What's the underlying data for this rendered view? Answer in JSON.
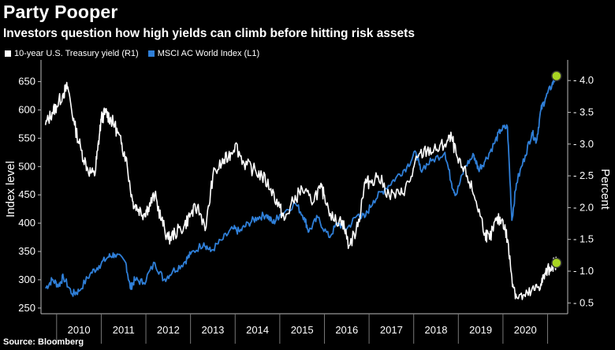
{
  "header": {
    "title": "Party Pooper",
    "subtitle": "Investors question how high yields can climb before hitting risk assets"
  },
  "footer": {
    "source": "Source: Bloomberg"
  },
  "colors": {
    "background": "#000000",
    "treasury": "#ffffff",
    "msci": "#2f7fd8",
    "marker": "#a8d422"
  },
  "chart_data": {
    "type": "line",
    "title": "Party Pooper",
    "subtitle": "Investors question how high yields can climb before hitting risk assets",
    "xlabel": "",
    "ylabel_left": "Index level",
    "ylabel_right": "Percent",
    "ylim_left": [
      240,
      680
    ],
    "ylim_right": [
      0.33,
      4.25
    ],
    "yticks_left": [
      250,
      300,
      350,
      400,
      450,
      500,
      550,
      600,
      650
    ],
    "yticks_right": [
      "0.5",
      "1.0",
      "1.5",
      "2.0",
      "2.5",
      "3.0",
      "3.5",
      "4.0"
    ],
    "x_categories": [
      "2010",
      "2011",
      "2012",
      "2013",
      "2014",
      "2015",
      "2016",
      "2017",
      "2018",
      "2019",
      "2020"
    ],
    "grid": false,
    "legend_position": "top-left",
    "series": [
      {
        "name": "10-year U.S. Treasury yield (R1)",
        "axis": "right",
        "points": [
          [
            2009.75,
            3.3
          ],
          [
            2009.9,
            3.5
          ],
          [
            2010.0,
            3.6
          ],
          [
            2010.15,
            3.8
          ],
          [
            2010.25,
            3.9
          ],
          [
            2010.4,
            3.3
          ],
          [
            2010.55,
            2.9
          ],
          [
            2010.7,
            2.6
          ],
          [
            2010.85,
            2.5
          ],
          [
            2010.92,
            2.9
          ],
          [
            2011.0,
            3.4
          ],
          [
            2011.1,
            3.5
          ],
          [
            2011.2,
            3.4
          ],
          [
            2011.3,
            3.3
          ],
          [
            2011.45,
            3.0
          ],
          [
            2011.55,
            2.8
          ],
          [
            2011.7,
            2.1
          ],
          [
            2011.8,
            2.0
          ],
          [
            2011.95,
            1.9
          ],
          [
            2012.05,
            2.0
          ],
          [
            2012.2,
            2.2
          ],
          [
            2012.35,
            1.8
          ],
          [
            2012.5,
            1.5
          ],
          [
            2012.65,
            1.6
          ],
          [
            2012.85,
            1.7
          ],
          [
            2013.0,
            1.9
          ],
          [
            2013.15,
            2.0
          ],
          [
            2013.35,
            1.7
          ],
          [
            2013.5,
            2.5
          ],
          [
            2013.7,
            2.7
          ],
          [
            2013.85,
            2.8
          ],
          [
            2014.0,
            3.0
          ],
          [
            2014.2,
            2.7
          ],
          [
            2014.4,
            2.6
          ],
          [
            2014.6,
            2.5
          ],
          [
            2014.8,
            2.3
          ],
          [
            2015.0,
            2.0
          ],
          [
            2015.1,
            1.8
          ],
          [
            2015.3,
            2.1
          ],
          [
            2015.5,
            2.3
          ],
          [
            2015.7,
            2.1
          ],
          [
            2015.9,
            2.3
          ],
          [
            2016.0,
            2.2
          ],
          [
            2016.2,
            1.8
          ],
          [
            2016.4,
            1.8
          ],
          [
            2016.55,
            1.4
          ],
          [
            2016.75,
            1.7
          ],
          [
            2016.9,
            2.4
          ],
          [
            2017.0,
            2.4
          ],
          [
            2017.2,
            2.5
          ],
          [
            2017.45,
            2.2
          ],
          [
            2017.7,
            2.2
          ],
          [
            2017.9,
            2.4
          ],
          [
            2018.1,
            2.8
          ],
          [
            2018.3,
            2.9
          ],
          [
            2018.5,
            2.9
          ],
          [
            2018.7,
            3.0
          ],
          [
            2018.85,
            3.1
          ],
          [
            2019.0,
            2.7
          ],
          [
            2019.2,
            2.5
          ],
          [
            2019.4,
            2.1
          ],
          [
            2019.6,
            1.6
          ],
          [
            2019.7,
            1.5
          ],
          [
            2019.85,
            1.8
          ],
          [
            2020.0,
            1.8
          ],
          [
            2020.1,
            1.5
          ],
          [
            2020.2,
            0.9
          ],
          [
            2020.3,
            0.6
          ],
          [
            2020.5,
            0.6
          ],
          [
            2020.7,
            0.7
          ],
          [
            2020.85,
            0.8
          ],
          [
            2020.95,
            0.95
          ],
          [
            2021.1,
            1.1
          ],
          [
            2021.2,
            1.13
          ]
        ]
      },
      {
        "name": "MSCI AC World Index (L1)",
        "axis": "left",
        "points": [
          [
            2009.75,
            285
          ],
          [
            2009.9,
            300
          ],
          [
            2010.05,
            290
          ],
          [
            2010.15,
            305
          ],
          [
            2010.35,
            275
          ],
          [
            2010.5,
            280
          ],
          [
            2010.75,
            310
          ],
          [
            2010.95,
            325
          ],
          [
            2011.15,
            340
          ],
          [
            2011.3,
            345
          ],
          [
            2011.55,
            330
          ],
          [
            2011.65,
            285
          ],
          [
            2011.75,
            300
          ],
          [
            2011.95,
            295
          ],
          [
            2012.2,
            330
          ],
          [
            2012.4,
            300
          ],
          [
            2012.6,
            315
          ],
          [
            2012.85,
            330
          ],
          [
            2013.0,
            345
          ],
          [
            2013.3,
            365
          ],
          [
            2013.45,
            350
          ],
          [
            2013.7,
            370
          ],
          [
            2013.95,
            390
          ],
          [
            2014.1,
            385
          ],
          [
            2014.3,
            400
          ],
          [
            2014.5,
            410
          ],
          [
            2014.7,
            415
          ],
          [
            2014.85,
            400
          ],
          [
            2015.0,
            415
          ],
          [
            2015.35,
            435
          ],
          [
            2015.55,
            410
          ],
          [
            2015.65,
            385
          ],
          [
            2015.85,
            410
          ],
          [
            2016.1,
            375
          ],
          [
            2016.3,
            400
          ],
          [
            2016.5,
            390
          ],
          [
            2016.75,
            415
          ],
          [
            2016.9,
            410
          ],
          [
            2017.1,
            440
          ],
          [
            2017.35,
            460
          ],
          [
            2017.6,
            480
          ],
          [
            2017.85,
            500
          ],
          [
            2018.05,
            525
          ],
          [
            2018.15,
            495
          ],
          [
            2018.4,
            510
          ],
          [
            2018.7,
            525
          ],
          [
            2018.85,
            470
          ],
          [
            2018.95,
            450
          ],
          [
            2019.15,
            500
          ],
          [
            2019.35,
            520
          ],
          [
            2019.45,
            495
          ],
          [
            2019.6,
            510
          ],
          [
            2019.8,
            540
          ],
          [
            2019.95,
            565
          ],
          [
            2020.1,
            570
          ],
          [
            2020.2,
            405
          ],
          [
            2020.3,
            470
          ],
          [
            2020.5,
            520
          ],
          [
            2020.65,
            560
          ],
          [
            2020.75,
            545
          ],
          [
            2020.85,
            600
          ],
          [
            2020.95,
            620
          ],
          [
            2021.1,
            645
          ],
          [
            2021.2,
            660
          ]
        ]
      }
    ],
    "annotations": [
      {
        "series": "MSCI AC World Index (L1)",
        "x": 2021.2,
        "y": 660,
        "marker": "circle"
      },
      {
        "series": "10-year U.S. Treasury yield (R1)",
        "x": 2021.2,
        "y": 1.13,
        "marker": "circle"
      }
    ]
  }
}
